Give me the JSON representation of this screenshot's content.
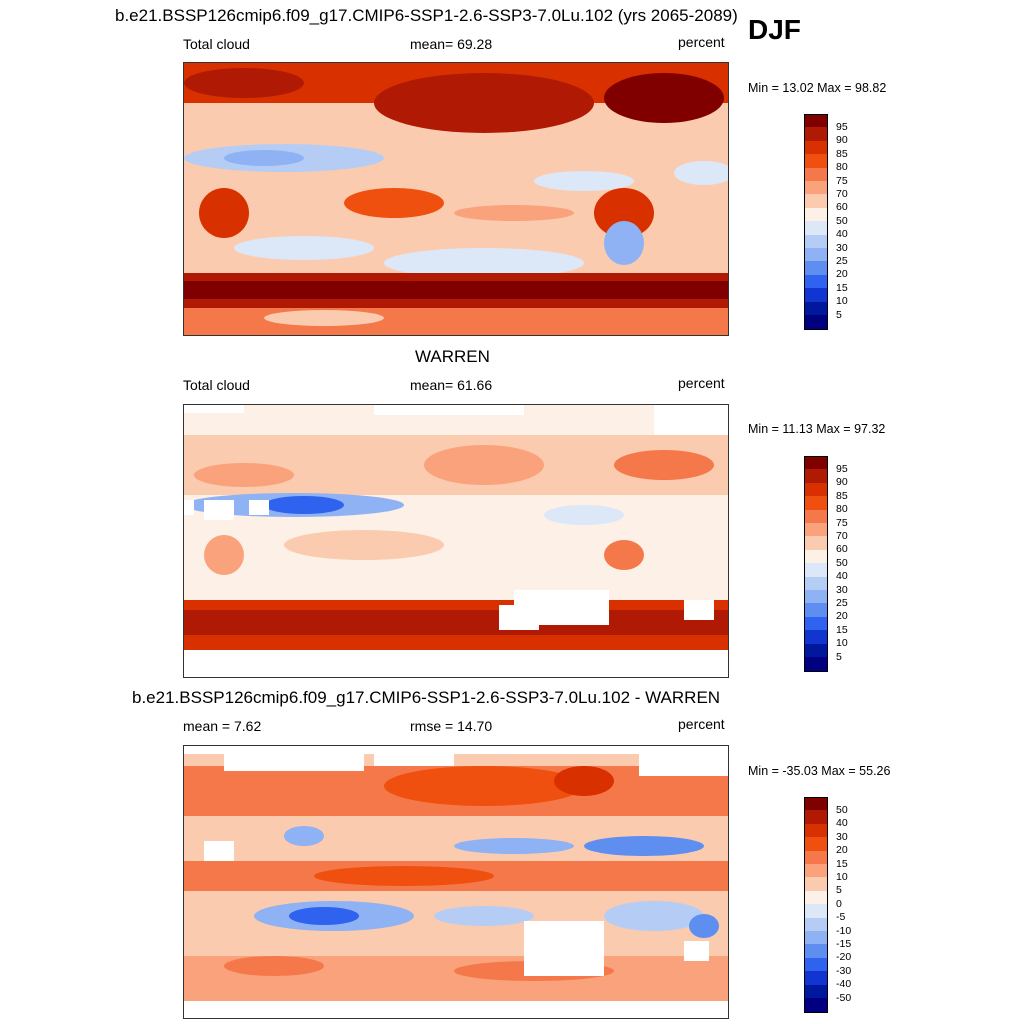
{
  "header": {
    "season": "DJF"
  },
  "panels": [
    {
      "id": "model",
      "title": "b.e21.BSSP126cmip6.f09_g17.CMIP6-SSP1-2.6-SSP3-7.0Lu.102 (yrs 2065-2089)",
      "left_label": "Total cloud",
      "center_label": "mean=  69.28",
      "right_label": "percent",
      "minmax": "Min =  13.02 Max =  98.82",
      "colorbar_labels": [
        "95",
        "90",
        "85",
        "80",
        "75",
        "70",
        "60",
        "50",
        "40",
        "30",
        "25",
        "20",
        "15",
        "10",
        "5"
      ]
    },
    {
      "id": "obs",
      "title": "WARREN",
      "left_label": "Total cloud",
      "center_label": "mean=  61.66",
      "right_label": "percent",
      "minmax": "Min =  11.13 Max =  97.32",
      "colorbar_labels": [
        "95",
        "90",
        "85",
        "80",
        "75",
        "70",
        "60",
        "50",
        "40",
        "30",
        "25",
        "20",
        "15",
        "10",
        "5"
      ]
    },
    {
      "id": "diff",
      "title": "b.e21.BSSP126cmip6.f09_g17.CMIP6-SSP1-2.6-SSP3-7.0Lu.102 - WARREN",
      "left_label": "mean =   7.62",
      "center_label": "rmse =  14.70",
      "right_label": "percent",
      "minmax": "Min = -35.03 Max =  55.26",
      "colorbar_labels": [
        "50",
        "40",
        "30",
        "20",
        "15",
        "10",
        "5",
        "0",
        "-5",
        "-10",
        "-15",
        "-20",
        "-30",
        "-40",
        "-50"
      ]
    }
  ],
  "colors": {
    "scale": [
      "#800000",
      "#b01a04",
      "#d93000",
      "#f0500f",
      "#f5784a",
      "#f9a27c",
      "#fbcbaf",
      "#fdf0e6",
      "#dce8f8",
      "#b5cdf5",
      "#8eb2f3",
      "#5d8ef0",
      "#2f62ee",
      "#1135d0",
      "#00189e",
      "#000080"
    ]
  }
}
